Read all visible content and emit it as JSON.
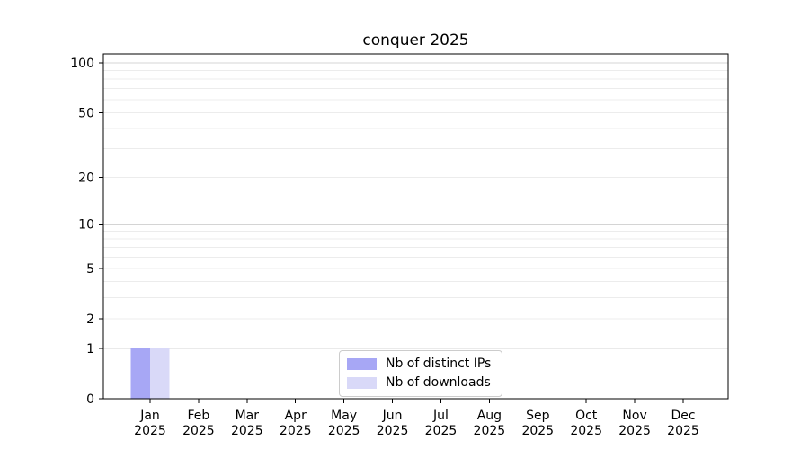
{
  "title": "conquer 2025",
  "chart_data": {
    "type": "bar",
    "title": "conquer 2025",
    "xlabel": "",
    "ylabel": "",
    "y_scale": "log1p",
    "ylim": [
      0,
      113
    ],
    "grid": true,
    "legend_position": "lower center",
    "categories": [
      "Jan",
      "Feb",
      "Mar",
      "Apr",
      "May",
      "Jun",
      "Jul",
      "Aug",
      "Sep",
      "Oct",
      "Nov",
      "Dec"
    ],
    "x_tick_year": "2025",
    "y_ticks": [
      0,
      1,
      2,
      5,
      10,
      20,
      50,
      100
    ],
    "y_major_gridlines": [
      1,
      10,
      100
    ],
    "y_minor_gridlines": [
      2,
      3,
      4,
      5,
      6,
      7,
      8,
      9,
      20,
      30,
      40,
      50,
      60,
      70,
      80,
      90
    ],
    "series": [
      {
        "name": "Nb of distinct IPs",
        "color": "#a7a7f5",
        "values": [
          1,
          0,
          0,
          0,
          0,
          0,
          0,
          0,
          0,
          0,
          0,
          0
        ]
      },
      {
        "name": "Nb of downloads",
        "color": "#d9d9f8",
        "values": [
          1,
          0,
          0,
          0,
          0,
          0,
          0,
          0,
          0,
          0,
          0,
          0
        ]
      }
    ],
    "colors": {
      "major_grid": "#d4d4d4",
      "minor_grid": "#ececec",
      "spine": "#000000",
      "background": "#ffffff"
    }
  }
}
